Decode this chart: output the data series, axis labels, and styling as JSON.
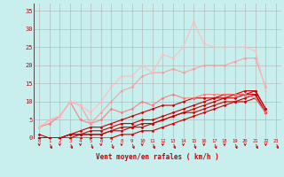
{
  "background_color": "#c8eeee",
  "grid_color": "#b0b0b0",
  "xlabel": "Vent moyen/en rafales ( km/h )",
  "ylabel_ticks": [
    0,
    5,
    10,
    15,
    20,
    25,
    30,
    35
  ],
  "xlim": [
    -0.5,
    23.5
  ],
  "ylim": [
    0,
    37
  ],
  "x": [
    0,
    1,
    2,
    3,
    4,
    5,
    6,
    7,
    8,
    9,
    10,
    11,
    12,
    13,
    14,
    15,
    16,
    17,
    18,
    19,
    20,
    21,
    22,
    23
  ],
  "series": [
    {
      "color": "#cc0000",
      "alpha": 1.0,
      "linewidth": 0.8,
      "marker": "D",
      "markersize": 1.5,
      "y": [
        0,
        0,
        0,
        0,
        0,
        0,
        0,
        0,
        1,
        1,
        2,
        2,
        3,
        4,
        5,
        6,
        7,
        8,
        9,
        10,
        10,
        11,
        7,
        null
      ]
    },
    {
      "color": "#cc0000",
      "alpha": 1.0,
      "linewidth": 0.8,
      "marker": "D",
      "markersize": 1.5,
      "y": [
        0,
        0,
        0,
        0,
        1,
        1,
        1,
        2,
        2,
        3,
        3,
        4,
        5,
        6,
        7,
        7,
        8,
        9,
        10,
        10,
        11,
        12,
        7,
        null
      ]
    },
    {
      "color": "#cc0000",
      "alpha": 1.0,
      "linewidth": 0.8,
      "marker": "D",
      "markersize": 1.5,
      "y": [
        0,
        0,
        0,
        1,
        1,
        1,
        1,
        2,
        3,
        3,
        4,
        4,
        5,
        6,
        7,
        8,
        9,
        10,
        11,
        11,
        12,
        13,
        8,
        null
      ]
    },
    {
      "color": "#cc0000",
      "alpha": 1.0,
      "linewidth": 0.8,
      "marker": "D",
      "markersize": 1.5,
      "y": [
        0,
        0,
        0,
        1,
        1,
        2,
        2,
        3,
        4,
        4,
        5,
        5,
        6,
        7,
        8,
        9,
        10,
        11,
        11,
        12,
        13,
        13,
        8,
        null
      ]
    },
    {
      "color": "#cc0000",
      "alpha": 1.0,
      "linewidth": 0.8,
      "marker": "D",
      "markersize": 1.5,
      "y": [
        1,
        0,
        0,
        1,
        2,
        3,
        3,
        4,
        5,
        6,
        7,
        8,
        9,
        9,
        10,
        11,
        11,
        11,
        12,
        12,
        12,
        12,
        7,
        null
      ]
    },
    {
      "color": "#ff7777",
      "alpha": 0.9,
      "linewidth": 0.8,
      "marker": "D",
      "markersize": 1.5,
      "y": [
        3,
        4,
        6,
        10,
        5,
        4,
        5,
        8,
        7,
        8,
        10,
        9,
        11,
        12,
        11,
        11,
        12,
        12,
        12,
        12,
        12,
        11,
        7,
        null
      ]
    },
    {
      "color": "#ff9999",
      "alpha": 0.9,
      "linewidth": 0.8,
      "marker": "D",
      "markersize": 1.5,
      "y": [
        3,
        5,
        6,
        10,
        9,
        4,
        7,
        10,
        13,
        14,
        17,
        18,
        18,
        19,
        18,
        19,
        20,
        20,
        20,
        21,
        22,
        22,
        14,
        null
      ]
    },
    {
      "color": "#ffbbbb",
      "alpha": 0.9,
      "linewidth": 0.8,
      "marker": "D",
      "markersize": 1.5,
      "y": [
        3,
        5,
        6,
        10,
        9,
        7,
        10,
        14,
        17,
        17,
        20,
        18,
        23,
        22,
        25,
        32,
        26,
        25,
        25,
        25,
        25,
        24,
        13,
        null
      ]
    }
  ],
  "arrow_color": "#cc0000",
  "xlabel_color": "#cc0000",
  "tick_color": "#cc0000"
}
